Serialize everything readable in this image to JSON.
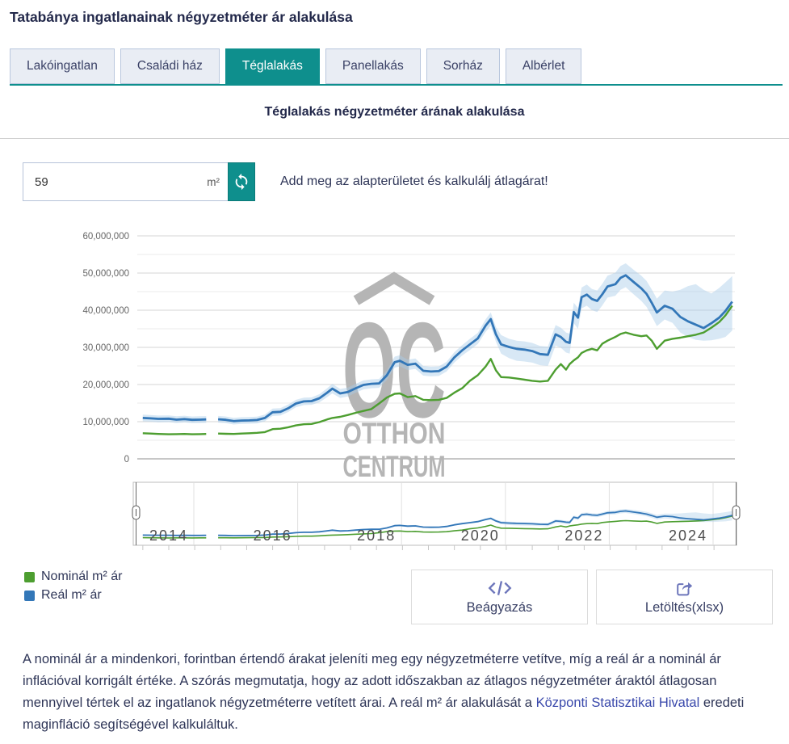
{
  "header": {
    "title": "Tatabánya ingatlanainak négyzetméter ár alakulása"
  },
  "tabs": [
    {
      "label": "Lakóingatlan",
      "active": false
    },
    {
      "label": "Családi ház",
      "active": false
    },
    {
      "label": "Téglalakás",
      "active": true
    },
    {
      "label": "Panellakás",
      "active": false
    },
    {
      "label": "Sorház",
      "active": false
    },
    {
      "label": "Albérlet",
      "active": false
    }
  ],
  "chart_header": {
    "subtitle": "Téglalakás négyzetméter árának alakulása"
  },
  "calculator": {
    "area_value": "59",
    "unit": "m²",
    "refresh_icon": "sync-arrows-icon",
    "helper_text": "Add meg az alapterületet és kalkulálj átlagárat!"
  },
  "actions": {
    "embed": {
      "label": "Beágyazás",
      "icon": "code-icon"
    },
    "download": {
      "label": "Letöltés(xlsx)",
      "icon": "share-export-icon"
    }
  },
  "watermark": {
    "logo": "OC",
    "line1": "OTTHON",
    "line2": "CENTRUM"
  },
  "footer": {
    "text_before": "A nominál ár a mindenkori, forintban értendő árakat jeleníti meg egy négyzetméterre vetítve, míg a reál ár a nominál ár inflációval korrigált értéke. A szórás megmutatja, hogy az adott időszakban az átlagos négyzetméter áraktól átlagosan mennyivel tértek el az ingatlanok négyzetméterre vetített árai. A reál m² ár alakulását a ",
    "link_text": "Központi Statisztikai Hivatal",
    "text_after": " eredeti maginfláció segítségével kalkuláltuk."
  },
  "chart_data": {
    "type": "line",
    "title": "Téglalakás négyzetméter árának alakulása",
    "xlabel": "",
    "ylabel": "",
    "unit": "HUF / m², values stored in millions",
    "x_range": [
      2013.5,
      2024.85
    ],
    "ylim_millions": [
      0,
      60
    ],
    "grid": "horizontal, minor every 5M, major every 10M",
    "legend_position": "bottom-left",
    "y_ticks": [
      [
        0,
        "0"
      ],
      [
        10,
        "10,000,000"
      ],
      [
        20,
        "20,000,000"
      ],
      [
        30,
        "30,000,000"
      ],
      [
        40,
        "40,000,000"
      ],
      [
        50,
        "50,000,000"
      ],
      [
        60,
        "60,000,000"
      ]
    ],
    "series": [
      {
        "name": "Nominál m² ár",
        "color": "#4d9e30"
      },
      {
        "name": "Reál m² ár",
        "color": "#3377b8",
        "band_color": "#a9cce9",
        "band_note": "szórás (deviation band) around the real price line"
      }
    ],
    "navigator": {
      "years": [
        2014,
        2016,
        2018,
        2020,
        2022,
        2024
      ]
    },
    "points_format": "[year_decimal, nominal_M, real_M, band_low_M, band_high_M], null = data gap",
    "points": [
      [
        2013.5,
        6.9,
        11.0,
        10.1,
        11.9
      ],
      [
        2013.65,
        6.8,
        10.9,
        10.0,
        11.8
      ],
      [
        2013.8,
        6.7,
        10.75,
        9.85,
        11.65
      ],
      [
        2014.0,
        6.6,
        10.8,
        9.9,
        11.7
      ],
      [
        2014.15,
        6.65,
        10.55,
        9.65,
        11.45
      ],
      [
        2014.3,
        6.7,
        10.7,
        9.8,
        11.6
      ],
      [
        2014.45,
        6.6,
        10.5,
        9.6,
        11.4
      ],
      [
        2014.6,
        6.65,
        10.55,
        9.65,
        11.45
      ],
      [
        2014.72,
        6.7,
        10.6,
        9.7,
        11.5
      ],
      null,
      [
        2014.95,
        6.8,
        10.65,
        9.75,
        11.55
      ],
      [
        2015.1,
        6.75,
        10.5,
        9.6,
        11.4
      ],
      [
        2015.25,
        6.7,
        10.15,
        9.25,
        11.05
      ],
      [
        2015.4,
        6.8,
        10.3,
        9.4,
        11.2
      ],
      [
        2015.55,
        6.9,
        10.35,
        9.45,
        11.25
      ],
      [
        2015.7,
        7.0,
        10.45,
        9.55,
        11.35
      ],
      [
        2015.85,
        7.2,
        11.0,
        10.1,
        11.9
      ],
      [
        2016.0,
        8.0,
        12.55,
        11.55,
        13.55
      ],
      [
        2016.15,
        8.1,
        12.65,
        11.65,
        13.65
      ],
      [
        2016.3,
        8.5,
        13.6,
        12.6,
        14.6
      ],
      [
        2016.45,
        9.0,
        14.9,
        13.9,
        15.9
      ],
      [
        2016.6,
        9.3,
        15.45,
        14.45,
        16.45
      ],
      [
        2016.75,
        9.4,
        15.55,
        14.55,
        16.55
      ],
      [
        2016.9,
        9.9,
        16.3,
        15.2,
        17.4
      ],
      [
        2017.05,
        10.6,
        17.8,
        16.6,
        19.0
      ],
      [
        2017.15,
        11.0,
        18.9,
        17.6,
        20.2
      ],
      [
        2017.3,
        11.3,
        17.6,
        16.4,
        18.8
      ],
      [
        2017.45,
        11.8,
        18.0,
        16.8,
        19.2
      ],
      [
        2017.6,
        12.4,
        19.0,
        17.8,
        20.2
      ],
      [
        2017.75,
        12.9,
        19.9,
        18.7,
        21.1
      ],
      [
        2017.9,
        13.4,
        20.2,
        19.0,
        21.4
      ],
      [
        2018.05,
        14.9,
        20.3,
        19.1,
        21.5
      ],
      [
        2018.2,
        16.5,
        22.5,
        21.2,
        23.8
      ],
      [
        2018.35,
        17.5,
        26.0,
        24.5,
        27.5
      ],
      [
        2018.45,
        17.6,
        26.4,
        24.9,
        27.9
      ],
      [
        2018.6,
        16.6,
        25.3,
        23.9,
        26.7
      ],
      [
        2018.75,
        16.9,
        25.6,
        24.2,
        27.0
      ],
      [
        2018.9,
        15.9,
        23.7,
        22.4,
        25.0
      ],
      [
        2019.05,
        15.8,
        23.5,
        22.2,
        24.8
      ],
      [
        2019.2,
        15.9,
        23.6,
        22.3,
        24.9
      ],
      [
        2019.35,
        16.4,
        24.8,
        23.5,
        26.1
      ],
      [
        2019.5,
        17.8,
        27.3,
        25.9,
        28.7
      ],
      [
        2019.65,
        19.0,
        29.2,
        27.8,
        30.6
      ],
      [
        2019.8,
        21.0,
        30.8,
        29.3,
        32.3
      ],
      [
        2019.95,
        22.5,
        32.4,
        30.9,
        33.9
      ],
      [
        2020.1,
        24.8,
        35.8,
        34.1,
        37.5
      ],
      [
        2020.2,
        26.9,
        37.6,
        35.8,
        39.4
      ],
      [
        2020.3,
        23.8,
        33.5,
        31.5,
        35.5
      ],
      [
        2020.4,
        22.0,
        30.8,
        28.3,
        33.3
      ],
      [
        2020.55,
        21.9,
        30.1,
        27.1,
        32.3
      ],
      [
        2020.7,
        21.6,
        29.6,
        26.4,
        31.8
      ],
      [
        2020.85,
        21.3,
        29.4,
        26.2,
        31.6
      ],
      [
        2021.0,
        21.0,
        29.0,
        25.9,
        31.2
      ],
      [
        2021.15,
        20.8,
        28.2,
        25.2,
        30.4
      ],
      [
        2021.3,
        21.0,
        28.0,
        25.0,
        30.2
      ],
      [
        2021.45,
        24.0,
        33.5,
        30.5,
        36.0
      ],
      [
        2021.55,
        25.5,
        32.8,
        29.9,
        35.3
      ],
      [
        2021.65,
        24.0,
        31.5,
        28.6,
        34.0
      ],
      [
        2021.72,
        25.5,
        31.2,
        28.3,
        33.7
      ],
      [
        2021.8,
        26.5,
        39.5,
        36.5,
        42.0
      ],
      [
        2021.88,
        27.3,
        38.0,
        35.0,
        40.6
      ],
      [
        2021.95,
        28.5,
        43.5,
        40.5,
        46.1
      ],
      [
        2022.05,
        29.2,
        44.2,
        41.2,
        46.9
      ],
      [
        2022.15,
        29.6,
        43.0,
        40.0,
        45.7
      ],
      [
        2022.25,
        29.2,
        42.5,
        39.5,
        45.3
      ],
      [
        2022.35,
        31.0,
        44.3,
        41.3,
        47.1
      ],
      [
        2022.45,
        31.8,
        46.4,
        43.4,
        49.3
      ],
      [
        2022.6,
        32.8,
        47.0,
        43.9,
        50.1
      ],
      [
        2022.7,
        33.6,
        48.7,
        45.5,
        51.9
      ],
      [
        2022.8,
        34.0,
        49.4,
        46.2,
        52.6
      ],
      [
        2022.95,
        33.4,
        47.6,
        44.3,
        50.9
      ],
      [
        2023.1,
        33.0,
        45.9,
        42.5,
        49.3
      ],
      [
        2023.2,
        33.2,
        44.4,
        40.9,
        47.9
      ],
      [
        2023.3,
        31.8,
        42.0,
        38.4,
        45.6
      ],
      [
        2023.4,
        29.6,
        39.4,
        35.7,
        43.1
      ],
      [
        2023.55,
        31.8,
        41.2,
        37.5,
        45.3
      ],
      [
        2023.7,
        32.3,
        40.4,
        36.6,
        45.0
      ],
      [
        2023.85,
        32.6,
        38.2,
        34.0,
        45.5
      ],
      [
        2024.0,
        33.0,
        37.0,
        32.8,
        46.5
      ],
      [
        2024.15,
        33.4,
        36.1,
        32.0,
        47.0
      ],
      [
        2024.3,
        34.0,
        35.2,
        31.8,
        45.5
      ],
      [
        2024.45,
        35.3,
        36.5,
        31.9,
        44.5
      ],
      [
        2024.6,
        36.8,
        38.0,
        32.3,
        46.0
      ],
      [
        2024.72,
        38.6,
        39.8,
        32.8,
        47.5
      ],
      [
        2024.85,
        41.2,
        42.3,
        34.5,
        49.2
      ]
    ]
  }
}
